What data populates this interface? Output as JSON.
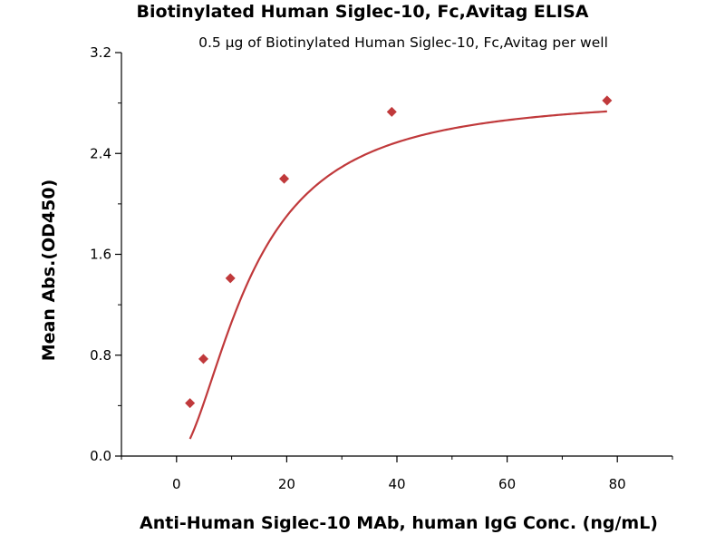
{
  "chart_data": {
    "type": "scatter",
    "title": "Biotinylated Human Siglec-10, Fc,Avitag ELISA",
    "subtitle": "0.5 µg of Biotinylated Human Siglec-10, Fc,Avitag per well",
    "xlabel": "Anti-Human Siglec-10 MAb, human IgG Conc. (ng/mL)",
    "ylabel": "Mean Abs.(OD450)",
    "xlim": [
      -10,
      90
    ],
    "ylim": [
      0,
      3.2
    ],
    "x_ticks": [
      "0",
      "20",
      "40",
      "60",
      "80"
    ],
    "y_ticks": [
      "0.0",
      "0.8",
      "1.6",
      "2.4",
      "3.2"
    ],
    "grid": false,
    "color": "#c0393b",
    "series": [
      {
        "x": [
          2.44,
          4.88,
          9.77,
          19.53,
          39.06,
          78.13
        ],
        "y": [
          0.42,
          0.77,
          1.41,
          2.2,
          2.73,
          2.82
        ]
      }
    ]
  }
}
